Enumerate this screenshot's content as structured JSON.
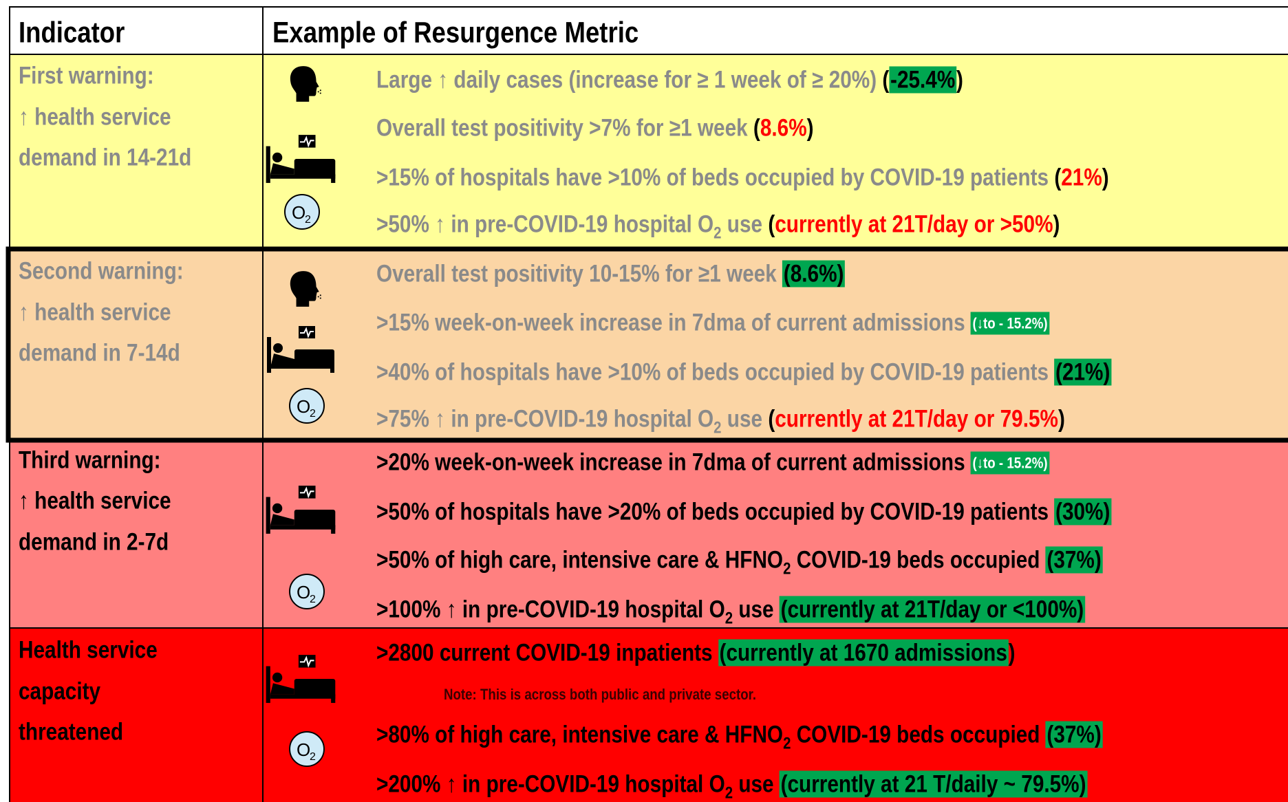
{
  "header": {
    "indicator": "Indicator",
    "metric": "Example of Resurgence Metric"
  },
  "icons": {
    "o": "O",
    "sub": "2"
  },
  "rows": [
    {
      "indicator": [
        "First warning:",
        "↑ health service",
        "demand in 14-21d"
      ],
      "metrics": [
        [
          "Large ↑ daily cases (increase for ≥ 1 week of ≥ 20%) ",
          "(",
          "-25.4%",
          ")"
        ],
        [
          "Overall test positivity >7% for ≥1 week ",
          "(",
          "8.6%",
          ")"
        ],
        [
          ">15% of hospitals have >10% of beds occupied by COVID-19 patients ",
          "(",
          "21%",
          ")"
        ],
        [
          ">50% ↑ in pre-COVID-19 hospital O",
          "2",
          " use ",
          "(",
          "currently at 21T/day or >50%",
          ")"
        ]
      ]
    },
    {
      "indicator": [
        "Second warning:",
        "↑ health service",
        "demand in 7-14d"
      ],
      "metrics": [
        [
          "Overall test positivity 10-15% for ≥1 week ",
          "(8.6%)"
        ],
        [
          ">15% week-on-week increase in 7dma of current admissions ",
          "(↓to - 15.2%)"
        ],
        [
          ">40% of hospitals have >10% of beds occupied by COVID-19 patients ",
          "(21%)"
        ],
        [
          ">75% ↑ in pre-COVID-19 hospital O",
          "2",
          " use ",
          "(",
          "currently at 21T/day or 79.5%",
          ")"
        ]
      ]
    },
    {
      "indicator": [
        "Third warning:",
        "↑ health service",
        "demand in 2-7d"
      ],
      "metrics": [
        [
          ">20% week-on-week increase in 7dma of current admissions ",
          "(↓to - 15.2%)"
        ],
        [
          ">50% of hospitals have >20% of beds occupied by COVID-19 patients ",
          "(30%)"
        ],
        [
          ">50% of high care, intensive care & HFNO",
          "2",
          " COVID-19 beds occupied ",
          "(37%)"
        ],
        [
          ">100% ↑ in pre-COVID-19 hospital O",
          "2",
          " use ",
          "(currently at 21T/day or <100%)"
        ]
      ]
    },
    {
      "indicator": [
        "Health service",
        "capacity",
        "threatened"
      ],
      "metrics": [
        [
          ">2800 current COVID-19 inpatients ",
          "(currently at 1670 admissions",
          ")"
        ],
        [
          ">80% of high care, intensive care & HFNO",
          "2",
          " COVID-19 beds occupied ",
          "(37%)"
        ],
        [
          ">200% ↑ in pre-COVID-19  hospital O",
          "2",
          " use ",
          "(currently at 21 T/daily ~ 79.5%)"
        ]
      ],
      "note": "Note: This is across both public and private sector."
    }
  ]
}
